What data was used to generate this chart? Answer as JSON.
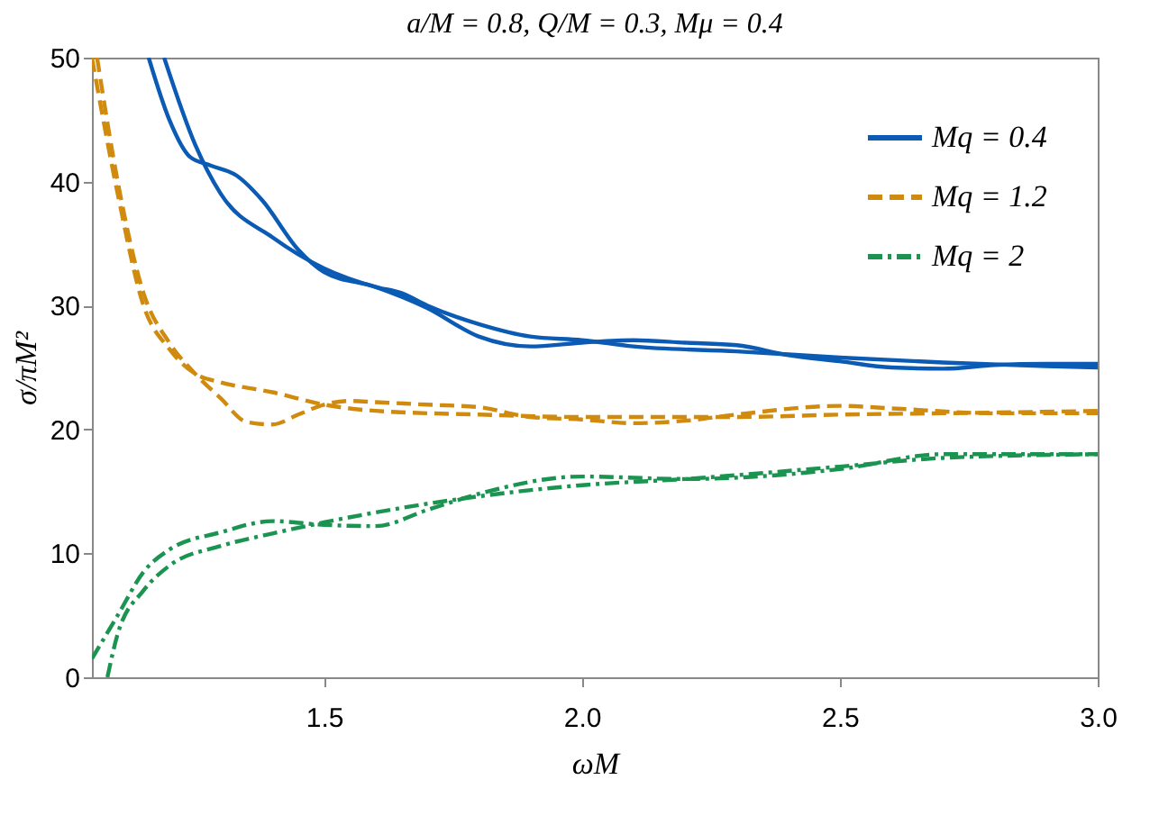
{
  "chart_data": {
    "type": "line",
    "title": "a/M = 0.8, Q/M = 0.3, Mμ = 0.4",
    "xlabel": "ωM",
    "ylabel": "σ/πM²",
    "xlim": [
      1.05,
      3.0
    ],
    "ylim": [
      0,
      50
    ],
    "xticks": [
      1.5,
      {
        "value": 2,
        "label": "2.0"
      },
      2.5,
      {
        "value": 3,
        "label": "3.0"
      }
    ],
    "yticks": [
      0,
      10,
      20,
      30,
      40,
      50
    ],
    "grid": false,
    "legend": "top right",
    "series": [
      {
        "name": "Mq = 0.4",
        "color": "#0b5bb5",
        "line_style": "solid",
        "x": [
          1.16,
          1.2,
          1.24,
          1.28,
          1.33,
          1.38,
          1.45,
          1.5,
          1.6,
          1.7,
          1.8,
          1.9,
          2.0,
          2.1,
          2.2,
          2.3,
          2.4,
          2.5,
          2.6,
          2.7,
          2.8,
          2.9,
          3.0
        ],
        "values": [
          50,
          45,
          42,
          41.3,
          40.5,
          38.5,
          34.5,
          32.7,
          31.5,
          29.8,
          27.5,
          26.7,
          27,
          27.2,
          27,
          26.8,
          26,
          25.5,
          25,
          24.9,
          25.2,
          25.3,
          25.3
        ]
      },
      {
        "color": "#0b5bb5",
        "line_style": "solid",
        "x": [
          1.19,
          1.25,
          1.3,
          1.4,
          1.5,
          1.6,
          1.65,
          1.7,
          1.8,
          1.9,
          2.0,
          2.1,
          2.3,
          2.5,
          2.7,
          2.9,
          3.0
        ],
        "values": [
          50,
          43,
          39,
          35.5,
          33,
          31.5,
          31,
          30,
          28.5,
          27.5,
          27.2,
          26.7,
          26.3,
          25.8,
          25.4,
          25.1,
          25.0
        ]
      },
      {
        "name": "Mq = 1.2",
        "color": "#d08a0e",
        "line_style": "dashed",
        "x": [
          1.06,
          1.1,
          1.15,
          1.2,
          1.25,
          1.3,
          1.35,
          1.4,
          1.45,
          1.5,
          1.55,
          1.6,
          1.7,
          1.8,
          1.9,
          2.0,
          2.1,
          2.2,
          2.3,
          2.5,
          2.6,
          2.8,
          3.0
        ],
        "values": [
          50,
          40,
          31,
          27,
          24.5,
          22.5,
          20.6,
          20.4,
          21.2,
          22,
          22.3,
          22.2,
          22,
          21.8,
          21,
          20.8,
          20.5,
          20.7,
          21.2,
          21.9,
          21.7,
          21.3,
          21.3
        ]
      },
      {
        "color": "#d08a0e",
        "line_style": "dashed",
        "x": [
          1.05,
          1.1,
          1.15,
          1.2,
          1.25,
          1.3,
          1.4,
          1.5,
          1.6,
          1.8,
          2.0,
          2.3,
          2.5,
          2.7,
          3.0
        ],
        "values": [
          50,
          39,
          30,
          26.5,
          24.5,
          23.8,
          23,
          22,
          21.5,
          21.2,
          21,
          21,
          21.2,
          21.3,
          21.5
        ]
      },
      {
        "name": "Mq = 2",
        "color": "#1a9450",
        "line_style": "dashdot",
        "x": [
          1.05,
          1.1,
          1.15,
          1.2,
          1.3,
          1.4,
          1.5,
          1.6,
          1.7,
          1.8,
          2.0,
          2.2,
          2.5,
          2.7,
          3.0
        ],
        "values": [
          1.5,
          5,
          8.5,
          10.3,
          11.7,
          12.6,
          12.3,
          12.2,
          13.5,
          14.8,
          16.2,
          16,
          16.8,
          18,
          18
        ]
      },
      {
        "color": "#1a9450",
        "line_style": "dashdot",
        "x": [
          1.08,
          1.1,
          1.15,
          1.2,
          1.3,
          1.4,
          1.5,
          1.6,
          1.8,
          2.0,
          2.2,
          2.5,
          2.7,
          3.0
        ],
        "values": [
          0,
          3.5,
          7,
          9,
          10.6,
          11.6,
          12.5,
          13.3,
          14.6,
          15.5,
          16,
          17,
          17.7,
          18
        ]
      }
    ]
  }
}
